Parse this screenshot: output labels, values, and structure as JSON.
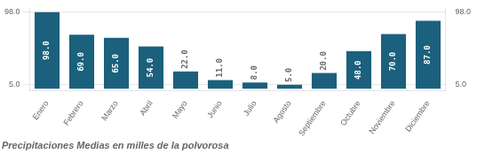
{
  "chart_data": {
    "type": "bar",
    "title": "Precipitaciones Medias en milles de la polvorosa",
    "categories": [
      "Enero",
      "Febrero",
      "Marzo",
      "Abril",
      "Mayo",
      "Junio",
      "Julio",
      "Agosto",
      "Septiembre",
      "Octubre",
      "Noviembre",
      "Diciembre"
    ],
    "values": [
      98.0,
      69.0,
      65.0,
      54.0,
      22.0,
      11.0,
      8.0,
      5.0,
      20.0,
      48.0,
      70.0,
      87.0
    ],
    "value_labels": [
      "98.0",
      "69.0",
      "65.0",
      "54.0",
      "22.0",
      "11.0",
      "8.0",
      "5.0",
      "20.0",
      "48.0",
      "70.0",
      "87.0"
    ],
    "data_labels": true,
    "color": "#1b607c",
    "ylim": [
      -3,
      104
    ],
    "yticks": [
      {
        "value": 5,
        "label": "5.0"
      },
      {
        "value": 98,
        "label": "98.0"
      }
    ],
    "y2lim": [
      -3,
      104
    ],
    "y2ticks": [
      {
        "value": 5,
        "label": "5.0"
      },
      {
        "value": 98,
        "label": "98.0"
      }
    ],
    "grid": true
  }
}
